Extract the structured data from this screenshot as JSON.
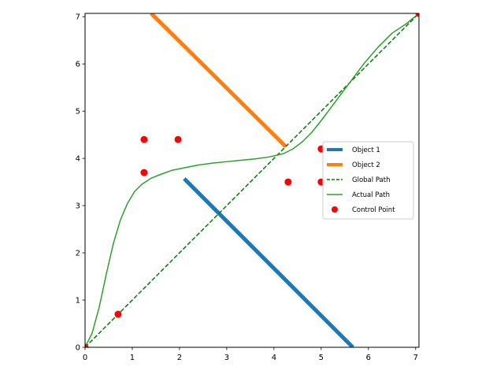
{
  "chart_data": {
    "type": "line",
    "xlim": [
      0,
      7.07
    ],
    "ylim": [
      0,
      7.07
    ],
    "xticks": [
      0,
      1,
      2,
      3,
      4,
      5,
      6,
      7
    ],
    "yticks": [
      0,
      1,
      2,
      3,
      4,
      5,
      6,
      7
    ],
    "grid": false,
    "legend_position": "right",
    "series": [
      {
        "name": "Object 1",
        "kind": "segment",
        "color": "#1f77b4",
        "x": [
          2.1,
          5.67
        ],
        "y": [
          3.57,
          0
        ]
      },
      {
        "name": "Object 2",
        "kind": "segment",
        "color": "#ff7f0e",
        "x": [
          1.4,
          4.25
        ],
        "y": [
          7.07,
          4.25
        ]
      },
      {
        "name": "Global Path",
        "kind": "dashed-line",
        "color": "#008000",
        "x": [
          0,
          7.07
        ],
        "y": [
          0,
          7.07
        ]
      },
      {
        "name": "Actual Path",
        "kind": "line",
        "color": "#2ca02c",
        "x": [
          0,
          0.15,
          0.3,
          0.45,
          0.6,
          0.75,
          0.9,
          1.05,
          1.2,
          1.4,
          1.6,
          1.85,
          2.1,
          2.4,
          2.7,
          3.0,
          3.3,
          3.6,
          3.9,
          4.2,
          4.4,
          4.6,
          4.8,
          5.0,
          5.3,
          5.6,
          5.9,
          6.2,
          6.5,
          6.8,
          7.07
        ],
        "y": [
          0,
          0.3,
          0.85,
          1.55,
          2.2,
          2.7,
          3.05,
          3.3,
          3.45,
          3.58,
          3.66,
          3.75,
          3.8,
          3.86,
          3.9,
          3.93,
          3.96,
          3.99,
          4.03,
          4.1,
          4.2,
          4.35,
          4.55,
          4.8,
          5.2,
          5.6,
          6.0,
          6.35,
          6.65,
          6.85,
          7.07
        ]
      },
      {
        "name": "Control Point",
        "kind": "scatter",
        "color": "#ff0000",
        "x": [
          0,
          0.7,
          1.25,
          1.25,
          1.97,
          4.3,
          5.0,
          5.0,
          7.07
        ],
        "y": [
          0,
          0.7,
          3.7,
          4.4,
          4.4,
          3.5,
          3.5,
          4.2,
          7.07
        ]
      }
    ],
    "legend": [
      "Object 1",
      "Object 2",
      "Global Path",
      "Actual Path",
      "Control Point"
    ]
  }
}
